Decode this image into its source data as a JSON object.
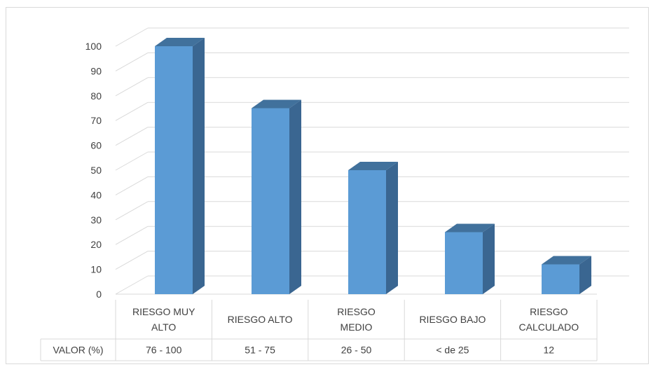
{
  "chart_data": {
    "type": "bar",
    "categories": [
      [
        "RIESGO MUY",
        "ALTO"
      ],
      [
        "RIESGO ALTO"
      ],
      [
        "RIESGO",
        "MEDIO"
      ],
      [
        "RIESGO BAJO"
      ],
      [
        "RIESGO",
        "CALCULADO"
      ]
    ],
    "values": [
      100,
      75,
      50,
      25,
      12
    ],
    "ylim": [
      0,
      100
    ],
    "yticks": [
      0,
      10,
      20,
      30,
      40,
      50,
      60,
      70,
      80,
      90,
      100
    ],
    "grid": true,
    "data_table": {
      "row_label": "VALOR (%)",
      "cells": [
        "76 - 100",
        "51 - 75",
        "26 - 50",
        "< de 25",
        "12"
      ]
    },
    "colors": {
      "bar_front": "#5b9bd5",
      "bar_side": "#3a6691",
      "bar_top": "#41719c",
      "grid": "#d9d9d9"
    }
  }
}
